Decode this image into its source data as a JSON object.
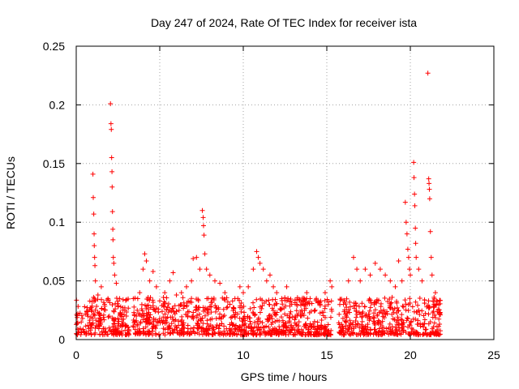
{
  "chart_data": {
    "type": "scatter",
    "title": "Day 247 of 2024, Rate Of TEC Index for receiver ista",
    "xlabel": "GPS time / hours",
    "ylabel": "ROTI / TECUs",
    "xlim": [
      0,
      25
    ],
    "ylim": [
      0,
      0.25
    ],
    "x_ticks": [
      0,
      5,
      10,
      15,
      20,
      25
    ],
    "x_tick_labels": [
      "0",
      "5",
      "10",
      "15",
      "20",
      "25"
    ],
    "y_ticks": [
      0,
      0.05,
      0.1,
      0.15,
      0.2,
      0.25
    ],
    "y_tick_labels": [
      "0",
      "0.05",
      "0.1",
      "0.15",
      "0.2",
      "0.25"
    ],
    "grid": true,
    "marker": "+",
    "marker_color": "#ff0000",
    "series": [
      {
        "name": "ROTI",
        "points": [
          [
            0.1,
            0.022
          ],
          [
            0.3,
            0.015
          ],
          [
            0.5,
            0.028
          ],
          [
            0.7,
            0.012
          ],
          [
            0.9,
            0.025
          ],
          [
            1.0,
            0.141
          ],
          [
            1.02,
            0.121
          ],
          [
            1.05,
            0.107
          ],
          [
            1.07,
            0.09
          ],
          [
            1.08,
            0.08
          ],
          [
            1.1,
            0.07
          ],
          [
            1.12,
            0.063
          ],
          [
            1.15,
            0.05
          ],
          [
            1.3,
            0.038
          ],
          [
            1.5,
            0.045
          ],
          [
            1.7,
            0.03
          ],
          [
            1.9,
            0.035
          ],
          [
            2.05,
            0.201
          ],
          [
            2.08,
            0.184
          ],
          [
            2.1,
            0.179
          ],
          [
            2.12,
            0.155
          ],
          [
            2.14,
            0.143
          ],
          [
            2.15,
            0.13
          ],
          [
            2.17,
            0.109
          ],
          [
            2.19,
            0.094
          ],
          [
            2.2,
            0.085
          ],
          [
            2.22,
            0.07
          ],
          [
            2.25,
            0.065
          ],
          [
            2.3,
            0.055
          ],
          [
            2.4,
            0.048
          ],
          [
            2.6,
            0.035
          ],
          [
            2.8,
            0.025
          ],
          [
            3.0,
            0.02
          ],
          [
            3.6,
            0.02
          ],
          [
            3.8,
            0.04
          ],
          [
            4.0,
            0.06
          ],
          [
            4.1,
            0.073
          ],
          [
            4.2,
            0.067
          ],
          [
            4.4,
            0.05
          ],
          [
            4.6,
            0.058
          ],
          [
            4.8,
            0.045
          ],
          [
            5.0,
            0.033
          ],
          [
            5.3,
            0.04
          ],
          [
            5.6,
            0.05
          ],
          [
            5.8,
            0.057
          ],
          [
            6.0,
            0.038
          ],
          [
            6.3,
            0.04
          ],
          [
            6.6,
            0.045
          ],
          [
            6.9,
            0.05
          ],
          [
            7.0,
            0.069
          ],
          [
            7.2,
            0.07
          ],
          [
            7.4,
            0.06
          ],
          [
            7.55,
            0.11
          ],
          [
            7.6,
            0.104
          ],
          [
            7.62,
            0.097
          ],
          [
            7.65,
            0.089
          ],
          [
            7.7,
            0.073
          ],
          [
            7.8,
            0.06
          ],
          [
            8.0,
            0.055
          ],
          [
            8.3,
            0.05
          ],
          [
            8.6,
            0.048
          ],
          [
            8.9,
            0.04
          ],
          [
            9.2,
            0.03
          ],
          [
            9.5,
            0.035
          ],
          [
            9.8,
            0.045
          ],
          [
            10.0,
            0.04
          ],
          [
            10.3,
            0.045
          ],
          [
            10.6,
            0.06
          ],
          [
            10.8,
            0.075
          ],
          [
            10.9,
            0.07
          ],
          [
            11.0,
            0.065
          ],
          [
            11.2,
            0.06
          ],
          [
            11.4,
            0.05
          ],
          [
            11.6,
            0.055
          ],
          [
            11.8,
            0.045
          ],
          [
            12.0,
            0.04
          ],
          [
            12.3,
            0.035
          ],
          [
            12.6,
            0.045
          ],
          [
            12.9,
            0.03
          ],
          [
            13.2,
            0.03
          ],
          [
            13.5,
            0.025
          ],
          [
            13.8,
            0.04
          ],
          [
            14.0,
            0.035
          ],
          [
            14.3,
            0.025
          ],
          [
            14.6,
            0.03
          ],
          [
            14.9,
            0.04
          ],
          [
            15.2,
            0.05
          ],
          [
            15.3,
            0.045
          ],
          [
            16.0,
            0.03
          ],
          [
            16.3,
            0.05
          ],
          [
            16.6,
            0.07
          ],
          [
            16.8,
            0.06
          ],
          [
            17.0,
            0.05
          ],
          [
            17.3,
            0.06
          ],
          [
            17.6,
            0.055
          ],
          [
            17.9,
            0.065
          ],
          [
            18.2,
            0.06
          ],
          [
            18.5,
            0.055
          ],
          [
            18.8,
            0.05
          ],
          [
            19.1,
            0.045
          ],
          [
            19.3,
            0.067
          ],
          [
            19.5,
            0.05
          ],
          [
            19.7,
            0.117
          ],
          [
            19.75,
            0.1
          ],
          [
            19.8,
            0.09
          ],
          [
            19.85,
            0.077
          ],
          [
            19.9,
            0.07
          ],
          [
            19.95,
            0.06
          ],
          [
            20.0,
            0.055
          ],
          [
            20.2,
            0.151
          ],
          [
            20.22,
            0.138
          ],
          [
            20.25,
            0.124
          ],
          [
            20.27,
            0.114
          ],
          [
            20.3,
            0.095
          ],
          [
            20.32,
            0.082
          ],
          [
            20.35,
            0.07
          ],
          [
            20.5,
            0.06
          ],
          [
            20.7,
            0.05
          ],
          [
            21.05,
            0.227
          ],
          [
            21.1,
            0.137
          ],
          [
            21.12,
            0.133
          ],
          [
            21.14,
            0.128
          ],
          [
            21.16,
            0.12
          ],
          [
            21.2,
            0.092
          ],
          [
            21.25,
            0.07
          ],
          [
            21.3,
            0.055
          ],
          [
            21.5,
            0.04
          ],
          [
            21.7,
            0.03
          ]
        ]
      }
    ]
  }
}
